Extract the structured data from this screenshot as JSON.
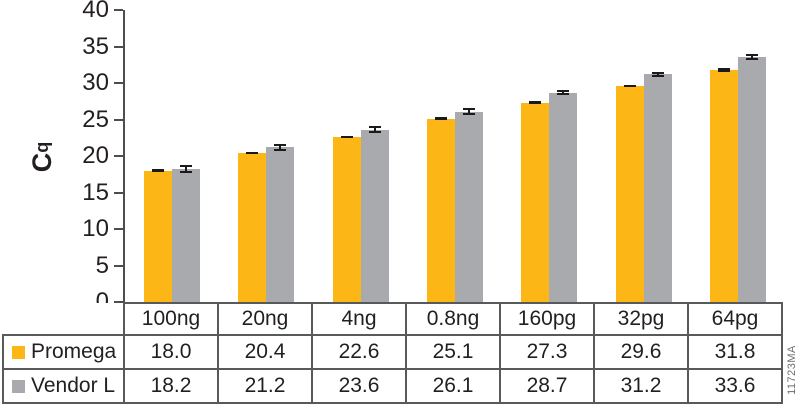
{
  "watermark": "11723MA",
  "colors": {
    "promega": "#FCB615",
    "vendor": "#A9AAAD",
    "axis": "#4D4D4D",
    "border": "#58595B",
    "error_bar": "#1A1A1A",
    "text": "#231F20"
  },
  "chart_data": {
    "type": "bar",
    "title": "",
    "xlabel": "",
    "ylabel_main": "C",
    "ylabel_sub": "q",
    "ylim": [
      0,
      40
    ],
    "ytick_step": 5,
    "yticks": [
      0,
      5,
      10,
      15,
      20,
      25,
      30,
      35,
      40
    ],
    "grid": false,
    "legend_position": "table-left",
    "categories": [
      "100ng",
      "20ng",
      "4ng",
      "0.8ng",
      "160pg",
      "32pg",
      "64pg"
    ],
    "series": [
      {
        "name": "Promega",
        "color": "#FCB615",
        "values": [
          18.0,
          20.4,
          22.6,
          25.1,
          27.3,
          29.6,
          31.8
        ],
        "display": [
          "18.0",
          "20.4",
          "22.6",
          "25.1",
          "27.3",
          "29.6",
          "31.8"
        ],
        "errors": [
          0.15,
          0.15,
          0.2,
          0.25,
          0.25,
          0.2,
          0.25
        ]
      },
      {
        "name": "Vendor L",
        "color": "#A9AAAD",
        "values": [
          18.2,
          21.2,
          23.6,
          26.1,
          28.7,
          31.2,
          33.6
        ],
        "display": [
          "18.2",
          "21.2",
          "23.6",
          "26.1",
          "28.7",
          "31.2",
          "33.6"
        ],
        "errors": [
          0.55,
          0.5,
          0.5,
          0.45,
          0.4,
          0.35,
          0.4
        ]
      }
    ]
  }
}
